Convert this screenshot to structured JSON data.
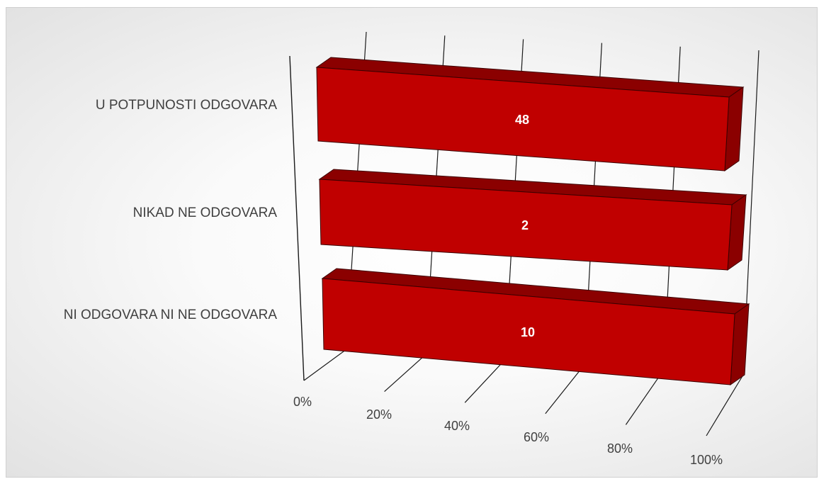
{
  "chart_data": {
    "type": "bar",
    "orientation": "horizontal",
    "style": "3d-stacked-100-percent",
    "categories": [
      "U POTPUNOSTI ODGOVARA",
      "NIKAD NE ODGOVARA",
      "NI ODGOVARA NI NE ODGOVARA"
    ],
    "series": [
      {
        "values": [
          48,
          2,
          10
        ],
        "color": "#c00000"
      }
    ],
    "data_labels": [
      "48",
      "2",
      "10"
    ],
    "x_axis": {
      "ticks": [
        "0%",
        "20%",
        "40%",
        "60%",
        "80%",
        "100%"
      ],
      "range": [
        0,
        100
      ]
    },
    "grid": true,
    "legend": "none",
    "colors": {
      "bar_front": "#c00000",
      "bar_top": "#8b0000",
      "bar_side": "#8b0000",
      "grid": "#1a1a1a",
      "text": "#404040"
    }
  }
}
